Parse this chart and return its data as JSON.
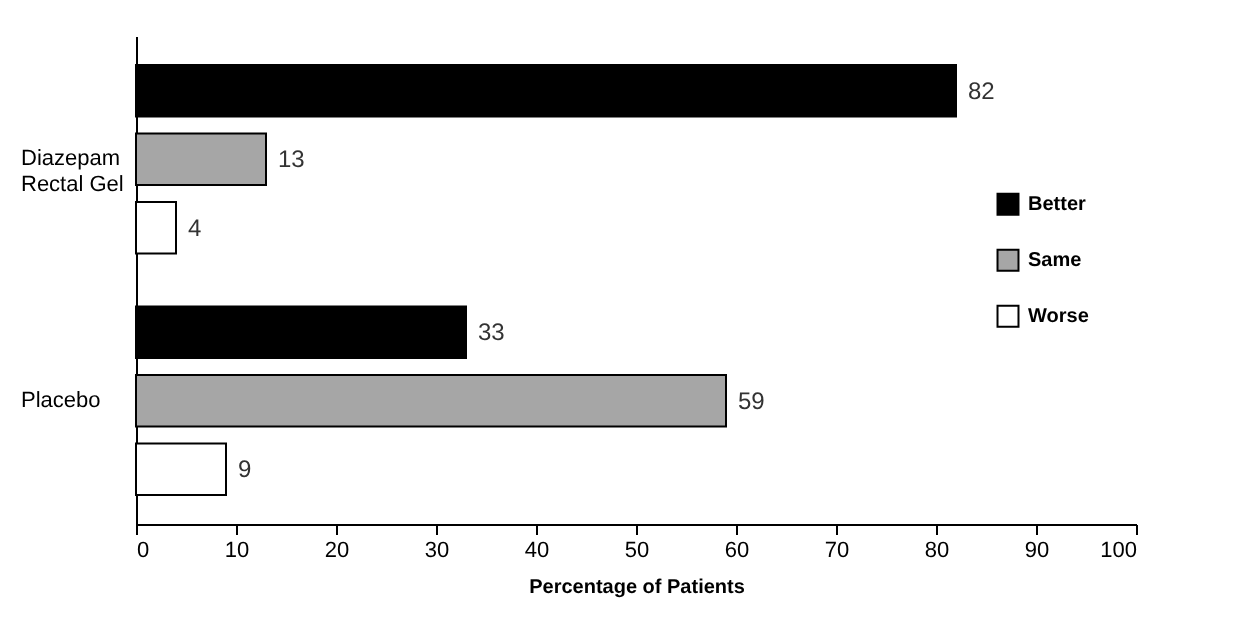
{
  "chart_data": {
    "type": "bar",
    "orientation": "horizontal",
    "xlabel": "Percentage of Patients",
    "categories": [
      "Diazepam Rectal Gel",
      "Placebo"
    ],
    "series": [
      {
        "name": "Better",
        "color": "#000000",
        "values": [
          82,
          33
        ]
      },
      {
        "name": "Same",
        "color": "#a6a6a6",
        "values": [
          13,
          59
        ]
      },
      {
        "name": "Worse",
        "color": "#ffffff",
        "values": [
          4,
          9
        ]
      }
    ],
    "xlim": [
      0,
      100
    ],
    "xticks": [
      0,
      10,
      20,
      30,
      40,
      50,
      60,
      70,
      80,
      90,
      100
    ],
    "data_labels": true,
    "legend": "right",
    "grid": false
  }
}
